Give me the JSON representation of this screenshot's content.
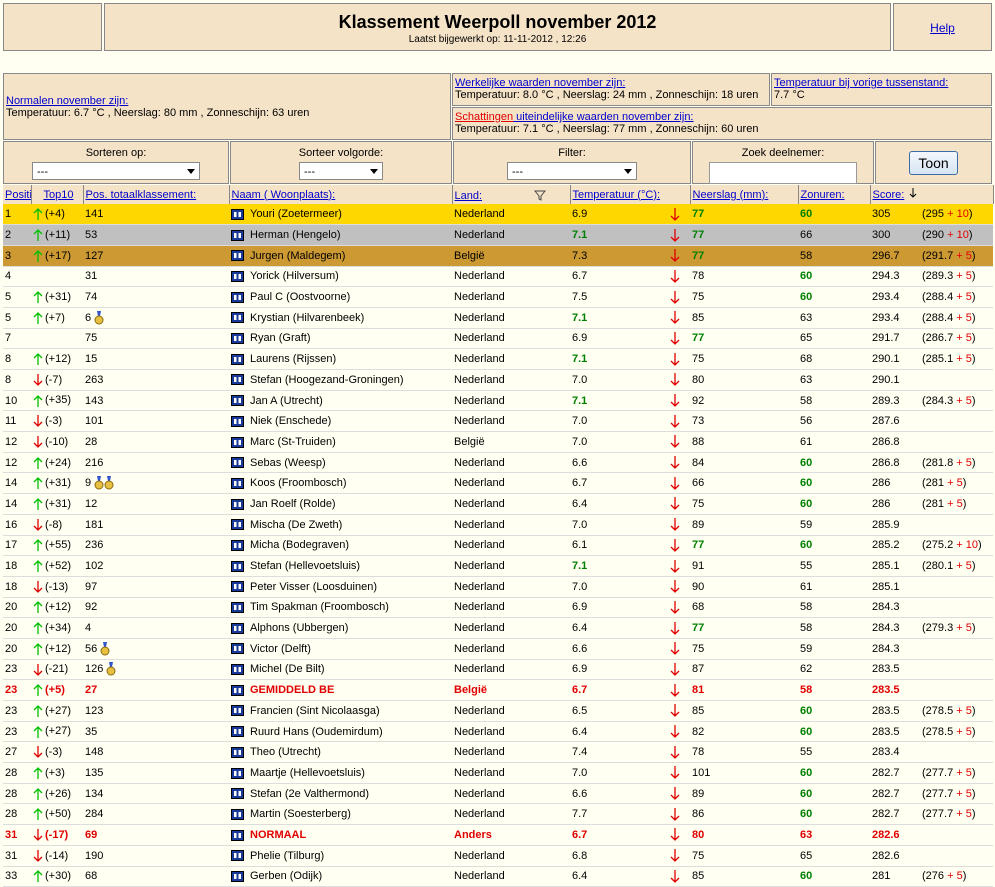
{
  "header": {
    "title": "Klassement Weerpoll november 2012",
    "updated": "Laatst bijgewerkt op: 11-11-2012 , 12:26",
    "help": "Help"
  },
  "info": {
    "normal_label": "Normalen november zijn:",
    "normal_text": "Temperatuur: 6.7 °C , Neerslag: 80 mm , Zonneschijn: 63 uren",
    "actual_label": "Werkelijke waarden november zijn:",
    "actual_text": "Temperatuur: 8.0 °C , Neerslag: 24 mm , Zonneschijn: 18 uren",
    "prev_label": "Temperatuur bij vorige tussenstand:",
    "prev_text": "7.7 °C",
    "estimate_link": "Schattingen",
    "estimate_label": " uiteindelijke waarden november zijn:",
    "estimate_parts": [
      "Temperatuur: ",
      "7.1",
      " °C , Neerslag: ",
      "77",
      " mm , Zonneschijn: ",
      "60",
      " uren"
    ]
  },
  "controls": {
    "sort_label": "Sorteren op:",
    "sort_value": "---",
    "order_label": "Sorteer volgorde:",
    "order_value": "---",
    "filter_label": "Filter:",
    "filter_value": "---",
    "search_label": "Zoek deelnemer:",
    "button": "Toon"
  },
  "columns": {
    "position": "Positie:",
    "top10": "Top10",
    "total": "Pos. totaalklassement:",
    "name": "Naam ( Woonplaats):",
    "land": "Land:",
    "temp": "Temperatuur (°C):",
    "rain": "Neerslag (mm):",
    "sun": "Zonuren:",
    "score": "Score:"
  },
  "rows": [
    {
      "kind": "gold",
      "pos": "1",
      "trend": "up",
      "change": "(+4)",
      "total": "141",
      "medals": 0,
      "name": "Youri (Zoetermeer)",
      "land": "Nederland",
      "temp": "6.9",
      "rain": "77",
      "sun": "60",
      "score": "305",
      "detail": [
        "(295 ",
        "+ 10",
        ")"
      ]
    },
    {
      "kind": "silver",
      "pos": "2",
      "trend": "up",
      "change": "(+11)",
      "total": "53",
      "medals": 0,
      "name": "Herman (Hengelo)",
      "land": "Nederland",
      "temp": "7.1",
      "rain": "77",
      "sun": "66",
      "score": "300",
      "detail": [
        "(290 ",
        "+ 10",
        ")"
      ]
    },
    {
      "kind": "bronze",
      "pos": "3",
      "trend": "up",
      "change": "(+17)",
      "total": "127",
      "medals": 0,
      "name": "Jurgen (Maldegem)",
      "land": "België",
      "temp": "7.3",
      "rain": "77",
      "sun": "58",
      "score": "296.7",
      "detail": [
        "(291.7 ",
        "+ 5",
        ")"
      ]
    },
    {
      "pos": "4",
      "trend": null,
      "change": null,
      "total": "31",
      "medals": 0,
      "name": "Yorick (Hilversum)",
      "land": "Nederland",
      "temp": "6.7",
      "rain": "78",
      "sun": "60",
      "score": "294.3",
      "detail": [
        "(289.3 ",
        "+ 5",
        ")"
      ]
    },
    {
      "pos": "5",
      "trend": "up",
      "change": "(+31)",
      "total": "74",
      "medals": 0,
      "name": "Paul C (Oostvoorne)",
      "land": "Nederland",
      "temp": "7.5",
      "rain": "75",
      "sun": "60",
      "score": "293.4",
      "detail": [
        "(288.4 ",
        "+ 5",
        ")"
      ]
    },
    {
      "pos": "5",
      "trend": "up",
      "change": "(+7)",
      "total": "6",
      "medals": 1,
      "name": "Krystian (Hilvarenbeek)",
      "land": "Nederland",
      "temp": "7.1",
      "rain": "85",
      "sun": "63",
      "score": "293.4",
      "detail": [
        "(288.4 ",
        "+ 5",
        ")"
      ]
    },
    {
      "pos": "7",
      "trend": null,
      "change": null,
      "total": "75",
      "medals": 0,
      "name": "Ryan (Graft)",
      "land": "Nederland",
      "temp": "6.9",
      "rain": "77",
      "sun": "65",
      "score": "291.7",
      "detail": [
        "(286.7 ",
        "+ 5",
        ")"
      ]
    },
    {
      "pos": "8",
      "trend": "up",
      "change": "(+12)",
      "total": "15",
      "medals": 0,
      "name": "Laurens (Rijssen)",
      "land": "Nederland",
      "temp": "7.1",
      "rain": "75",
      "sun": "68",
      "score": "290.1",
      "detail": [
        "(285.1 ",
        "+ 5",
        ")"
      ]
    },
    {
      "pos": "8",
      "trend": "down",
      "change": "(-7)",
      "total": "263",
      "medals": 0,
      "name": "Stefan (Hoogezand-Groningen)",
      "land": "Nederland",
      "temp": "7.0",
      "rain": "80",
      "sun": "63",
      "score": "290.1",
      "detail": null
    },
    {
      "pos": "10",
      "trend": "up",
      "change": "(+35)",
      "total": "143",
      "medals": 0,
      "name": "Jan A (Utrecht)",
      "land": "Nederland",
      "temp": "7.1",
      "rain": "92",
      "sun": "58",
      "score": "289.3",
      "detail": [
        "(284.3 ",
        "+ 5",
        ")"
      ]
    },
    {
      "pos": "11",
      "trend": "down",
      "change": "(-3)",
      "total": "101",
      "medals": 0,
      "name": "Niek (Enschede)",
      "land": "Nederland",
      "temp": "7.0",
      "rain": "73",
      "sun": "56",
      "score": "287.6",
      "detail": null
    },
    {
      "pos": "12",
      "trend": "down",
      "change": "(-10)",
      "total": "28",
      "medals": 0,
      "name": "Marc (St-Truiden)",
      "land": "België",
      "temp": "7.0",
      "rain": "88",
      "sun": "61",
      "score": "286.8",
      "detail": null
    },
    {
      "pos": "12",
      "trend": "up",
      "change": "(+24)",
      "total": "216",
      "medals": 0,
      "name": "Sebas (Weesp)",
      "land": "Nederland",
      "temp": "6.6",
      "rain": "84",
      "sun": "60",
      "score": "286.8",
      "detail": [
        "(281.8 ",
        "+ 5",
        ")"
      ]
    },
    {
      "pos": "14",
      "trend": "up",
      "change": "(+31)",
      "total": "9",
      "medals": 2,
      "name": "Koos (Froombosch)",
      "land": "Nederland",
      "temp": "6.7",
      "rain": "66",
      "sun": "60",
      "score": "286",
      "detail": [
        "(281 ",
        "+ 5",
        ")"
      ]
    },
    {
      "pos": "14",
      "trend": "up",
      "change": "(+31)",
      "total": "12",
      "medals": 0,
      "name": "Jan Roelf (Rolde)",
      "land": "Nederland",
      "temp": "6.4",
      "rain": "75",
      "sun": "60",
      "score": "286",
      "detail": [
        "(281 ",
        "+ 5",
        ")"
      ]
    },
    {
      "pos": "16",
      "trend": "down",
      "change": "(-8)",
      "total": "181",
      "medals": 0,
      "name": "Mischa (De Zweth)",
      "land": "Nederland",
      "temp": "7.0",
      "rain": "89",
      "sun": "59",
      "score": "285.9",
      "detail": null
    },
    {
      "pos": "17",
      "trend": "up",
      "change": "(+55)",
      "total": "236",
      "medals": 0,
      "name": "Micha (Bodegraven)",
      "land": "Nederland",
      "temp": "6.1",
      "rain": "77",
      "sun": "60",
      "score": "285.2",
      "detail": [
        "(275.2 ",
        "+ 10",
        ")"
      ]
    },
    {
      "pos": "18",
      "trend": "up",
      "change": "(+52)",
      "total": "102",
      "medals": 0,
      "name": "Stefan (Hellevoetsluis)",
      "land": "Nederland",
      "temp": "7.1",
      "rain": "91",
      "sun": "55",
      "score": "285.1",
      "detail": [
        "(280.1 ",
        "+ 5",
        ")"
      ]
    },
    {
      "pos": "18",
      "trend": "down",
      "change": "(-13)",
      "total": "97",
      "medals": 0,
      "name": "Peter Visser (Loosduinen)",
      "land": "Nederland",
      "temp": "7.0",
      "rain": "90",
      "sun": "61",
      "score": "285.1",
      "detail": null
    },
    {
      "pos": "20",
      "trend": "up",
      "change": "(+12)",
      "total": "92",
      "medals": 0,
      "name": "Tim Spakman (Froombosch)",
      "land": "Nederland",
      "temp": "6.9",
      "rain": "68",
      "sun": "58",
      "score": "284.3",
      "detail": null
    },
    {
      "pos": "20",
      "trend": "up",
      "change": "(+34)",
      "total": "4",
      "medals": 0,
      "name": "Alphons (Ubbergen)",
      "land": "Nederland",
      "temp": "6.4",
      "rain": "77",
      "sun": "58",
      "score": "284.3",
      "detail": [
        "(279.3 ",
        "+ 5",
        ")"
      ]
    },
    {
      "pos": "20",
      "trend": "up",
      "change": "(+12)",
      "total": "56",
      "medals": 1,
      "name": "Victor (Delft)",
      "land": "Nederland",
      "temp": "6.6",
      "rain": "75",
      "sun": "59",
      "score": "284.3",
      "detail": null
    },
    {
      "pos": "23",
      "trend": "down",
      "change": "(-21)",
      "total": "126",
      "medals": 1,
      "name": "Michel (De Bilt)",
      "land": "Nederland",
      "temp": "6.9",
      "rain": "87",
      "sun": "62",
      "score": "283.5",
      "detail": null
    },
    {
      "kind": "ref",
      "pos": "23",
      "trend": "up",
      "change": "(+5)",
      "total": "27",
      "medals": 0,
      "name": "GEMIDDELD BE",
      "land": "België",
      "temp": "6.7",
      "rain": "81",
      "sun": "58",
      "score": "283.5",
      "detail": null
    },
    {
      "pos": "23",
      "trend": "up",
      "change": "(+27)",
      "total": "123",
      "medals": 0,
      "name": "Francien (Sint Nicolaasga)",
      "land": "Nederland",
      "temp": "6.5",
      "rain": "85",
      "sun": "60",
      "score": "283.5",
      "detail": [
        "(278.5 ",
        "+ 5",
        ")"
      ]
    },
    {
      "pos": "23",
      "trend": "up",
      "change": "(+27)",
      "total": "35",
      "medals": 0,
      "name": "Ruurd Hans (Oudemirdum)",
      "land": "Nederland",
      "temp": "6.4",
      "rain": "82",
      "sun": "60",
      "score": "283.5",
      "detail": [
        "(278.5 ",
        "+ 5",
        ")"
      ]
    },
    {
      "pos": "27",
      "trend": "down",
      "change": "(-3)",
      "total": "148",
      "medals": 0,
      "name": "Theo (Utrecht)",
      "land": "Nederland",
      "temp": "7.4",
      "rain": "78",
      "sun": "55",
      "score": "283.4",
      "detail": null
    },
    {
      "pos": "28",
      "trend": "up",
      "change": "(+3)",
      "total": "135",
      "medals": 0,
      "name": "Maartje (Hellevoetsluis)",
      "land": "Nederland",
      "temp": "7.0",
      "rain": "101",
      "sun": "60",
      "score": "282.7",
      "detail": [
        "(277.7 ",
        "+ 5",
        ")"
      ]
    },
    {
      "pos": "28",
      "trend": "up",
      "change": "(+26)",
      "total": "134",
      "medals": 0,
      "name": "Stefan (2e Valthermond)",
      "land": "Nederland",
      "temp": "6.6",
      "rain": "89",
      "sun": "60",
      "score": "282.7",
      "detail": [
        "(277.7 ",
        "+ 5",
        ")"
      ]
    },
    {
      "pos": "28",
      "trend": "up",
      "change": "(+50)",
      "total": "284",
      "medals": 0,
      "name": "Martin (Soesterberg)",
      "land": "Nederland",
      "temp": "7.7",
      "rain": "86",
      "sun": "60",
      "score": "282.7",
      "detail": [
        "(277.7 ",
        "+ 5",
        ")"
      ]
    },
    {
      "kind": "ref",
      "pos": "31",
      "trend": "down",
      "change": "(-17)",
      "total": "69",
      "medals": 0,
      "name": "NORMAAL",
      "land": "Anders",
      "temp": "6.7",
      "rain": "80",
      "sun": "63",
      "score": "282.6",
      "detail": null
    },
    {
      "pos": "31",
      "trend": "down",
      "change": "(-14)",
      "total": "190",
      "medals": 0,
      "name": "Phelie (Tilburg)",
      "land": "Nederland",
      "temp": "6.8",
      "rain": "75",
      "sun": "65",
      "score": "282.6",
      "detail": null
    },
    {
      "pos": "33",
      "trend": "up",
      "change": "(+30)",
      "total": "68",
      "medals": 0,
      "name": "Gerben (Odijk)",
      "land": "Nederland",
      "temp": "6.4",
      "rain": "85",
      "sun": "60",
      "score": "281",
      "detail": [
        "(276 ",
        "+ 5",
        ")"
      ]
    }
  ]
}
